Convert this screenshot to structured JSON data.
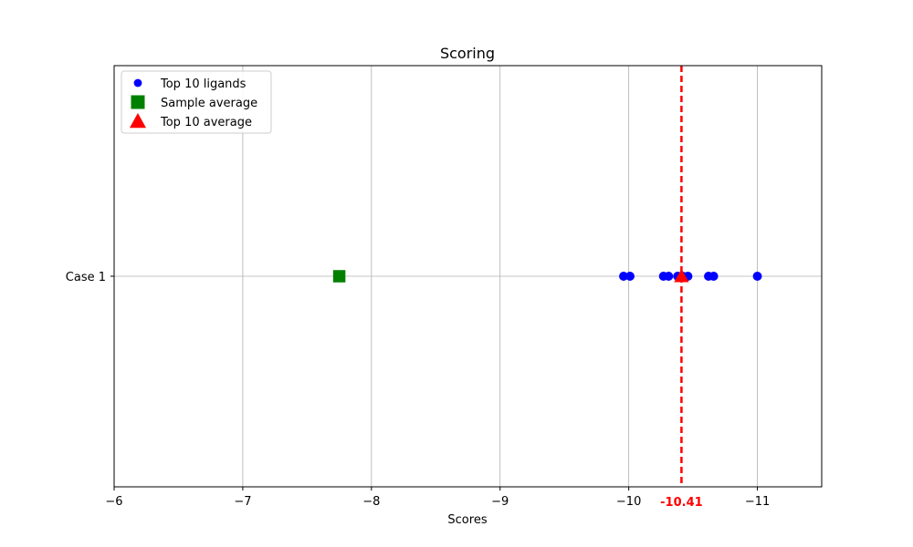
{
  "chart_data": {
    "type": "scatter",
    "title": "Scoring",
    "xlabel": "Scores",
    "ylabel": "",
    "x_axis_inverted": true,
    "xlim": [
      -6,
      -11.5
    ],
    "xticks": [
      -6,
      -7,
      -8,
      -9,
      -10,
      -11
    ],
    "xtick_labels": [
      "−6",
      "−7",
      "−8",
      "−9",
      "−10",
      "−11"
    ],
    "y_categories": [
      "Case 1"
    ],
    "grid": true,
    "legend_position": "upper-left",
    "series": [
      {
        "name": "Top 10 ligands",
        "marker": "circle",
        "color": "#0000ff",
        "x": [
          -9.96,
          -10.01,
          -10.27,
          -10.31,
          -10.38,
          -10.46,
          -10.62,
          -10.66,
          -11.0,
          -10.42
        ],
        "y": [
          "Case 1",
          "Case 1",
          "Case 1",
          "Case 1",
          "Case 1",
          "Case 1",
          "Case 1",
          "Case 1",
          "Case 1",
          "Case 1"
        ]
      },
      {
        "name": "Sample average",
        "marker": "square",
        "color": "#008000",
        "x": [
          -7.75
        ],
        "y": [
          "Case 1"
        ]
      },
      {
        "name": "Top 10 average",
        "marker": "triangle",
        "color": "#ff0000",
        "x": [
          -10.41
        ],
        "y": [
          "Case 1"
        ]
      }
    ],
    "reference_line": {
      "x": -10.41,
      "style": "dashed",
      "color": "#ff0000",
      "label": "-10.41"
    }
  }
}
